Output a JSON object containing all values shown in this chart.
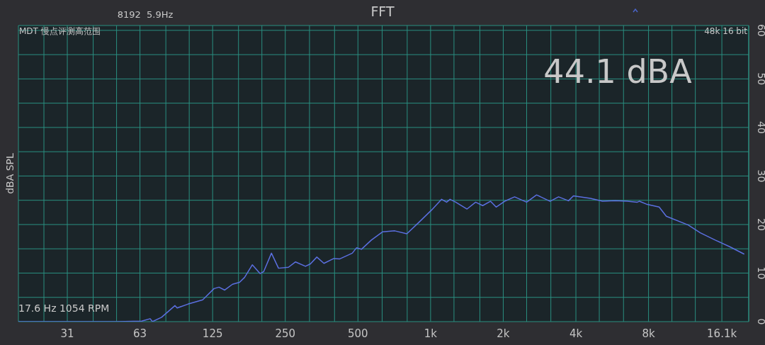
{
  "chart_data": {
    "type": "line",
    "title": "FFT",
    "ylabel": "dBA SPL",
    "annotations": [
      "8192  5.9Hz",
      "MDT 慢点评测高范围",
      "48k 16 bit",
      "44.1 dBA",
      "17.6 Hz 1054 RPM"
    ],
    "x": [
      19.6,
      30,
      40,
      50,
      63.6,
      68.9,
      70.4,
      76.8,
      87.3,
      89.1,
      98.7,
      113.7,
      126.7,
      132.8,
      140.3,
      151.1,
      161.6,
      169.5,
      182.5,
      196.7,
      203.4,
      219.1,
      234.4,
      257.7,
      275.7,
      303.1,
      317.8,
      337.8,
      361.5,
      397.2,
      419.4,
      473.7,
      493.2,
      517.2,
      568.4,
      633.4,
      710.6,
      797.2,
      900.6,
      1010,
      1111,
      1165,
      1204,
      1271,
      1416,
      1537,
      1644,
      1770,
      1869,
      2028,
      2229,
      2500,
      2749,
      3126,
      3390,
      3728,
      3906,
      4594,
      5156,
      5822,
      6531,
      7181,
      7325,
      7841,
      8853,
      9475,
      11681,
      13106,
      15106,
      17413,
      19931
    ],
    "values": [
      0,
      0,
      0,
      0,
      0.1,
      0.6,
      0,
      0.9,
      3.3,
      2.8,
      3.6,
      4.5,
      6.8,
      7.1,
      6.5,
      7.7,
      8.1,
      9.1,
      11.7,
      9.9,
      10.3,
      14.1,
      11.0,
      11.2,
      12.3,
      11.4,
      11.9,
      13.3,
      12.0,
      13.0,
      12.9,
      14.1,
      15.2,
      14.9,
      16.8,
      18.5,
      18.7,
      18.1,
      20.6,
      23.0,
      25.2,
      24.6,
      25.2,
      24.6,
      23.2,
      24.6,
      23.9,
      24.8,
      23.6,
      24.8,
      25.7,
      24.6,
      26.1,
      24.8,
      25.7,
      24.9,
      25.9,
      25.4,
      24.8,
      24.9,
      24.8,
      24.6,
      24.8,
      24.2,
      23.6,
      21.7,
      19.9,
      18.3,
      16.8,
      15.4,
      13.9
    ],
    "color": "#5b6fe0",
    "log": "x",
    "grid": true,
    "marker": "none",
    "line_style": "solid",
    "xlim": [
      19.6,
      20800
    ],
    "xticks": [
      {
        "value": 25,
        "label": null
      },
      {
        "value": 31.25,
        "label": "31"
      },
      {
        "value": 40,
        "label": null
      },
      {
        "value": 50,
        "label": null
      },
      {
        "value": 62.5,
        "label": "63"
      },
      {
        "value": 80,
        "label": null
      },
      {
        "value": 100,
        "label": null
      },
      125,
      {
        "value": 160,
        "label": null
      },
      {
        "value": 200,
        "label": null
      },
      250,
      {
        "value": 315,
        "label": null
      },
      {
        "value": 400,
        "label": null
      },
      500,
      {
        "value": 630,
        "label": null
      },
      {
        "value": 800,
        "label": null
      },
      {
        "value": 1000,
        "label": "1k"
      },
      {
        "value": 1250,
        "label": null
      },
      {
        "value": 1600,
        "label": null
      },
      {
        "value": 2000,
        "label": "2k"
      },
      {
        "value": 2500,
        "label": null
      },
      {
        "value": 3150,
        "label": null
      },
      {
        "value": 4000,
        "label": "4k"
      },
      {
        "value": 5000,
        "label": null
      },
      {
        "value": 6300,
        "label": null
      },
      {
        "value": 8000,
        "label": "8k"
      },
      {
        "value": 10000,
        "label": null
      },
      {
        "value": 12500,
        "label": null
      },
      {
        "value": 16100,
        "label": "16.1k"
      }
    ],
    "ylim": [
      0,
      61
    ],
    "yticks": [
      0,
      {
        "value": 5,
        "label": null
      },
      10,
      {
        "value": 15,
        "label": null
      },
      20,
      {
        "value": 25,
        "label": null
      },
      30,
      {
        "value": 35,
        "label": null
      },
      40,
      {
        "value": 45,
        "label": null
      },
      50,
      {
        "value": 55,
        "label": null
      },
      60
    ]
  }
}
